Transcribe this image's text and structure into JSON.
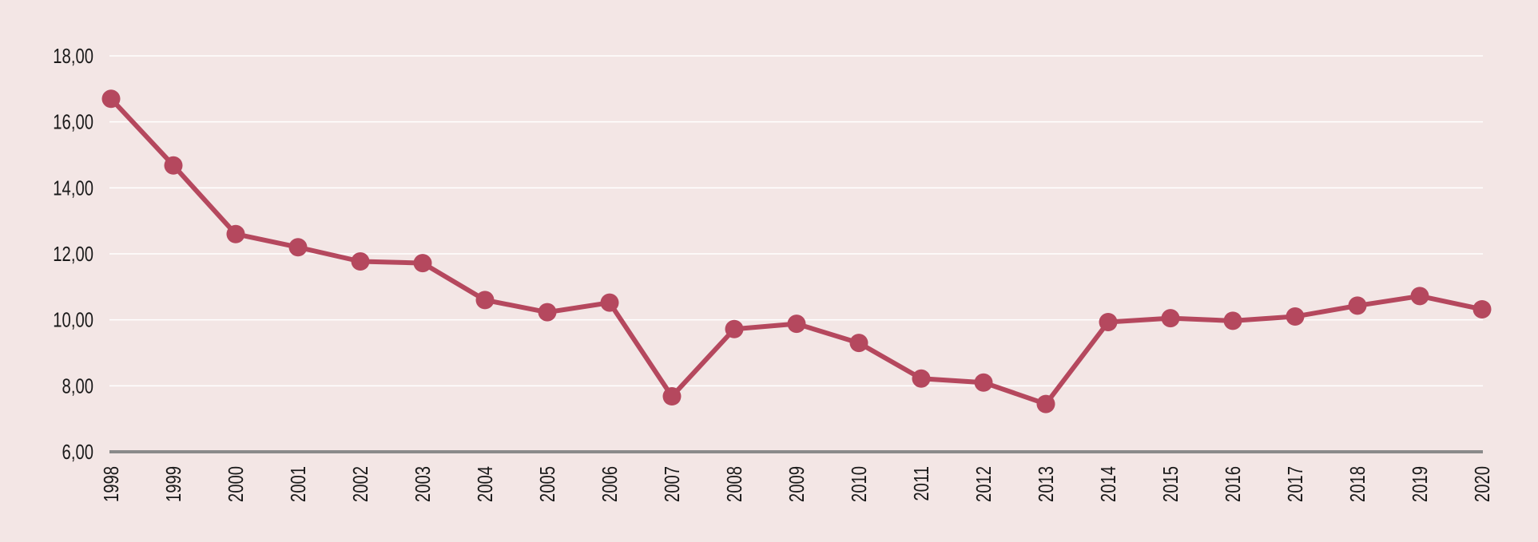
{
  "chart_data": {
    "type": "line",
    "title": "",
    "xlabel": "",
    "ylabel": "",
    "ylim": [
      6,
      18
    ],
    "y_ticks": [
      "6,00",
      "8,00",
      "10,00",
      "12,00",
      "14,00",
      "16,00",
      "18,00"
    ],
    "y_tick_values": [
      6,
      8,
      10,
      12,
      14,
      16,
      18
    ],
    "grid": true,
    "categories": [
      "1998",
      "1999",
      "2000",
      "2001",
      "2002",
      "2003",
      "2004",
      "2005",
      "2006",
      "2007",
      "2008",
      "2009",
      "2010",
      "2011",
      "2012",
      "2013",
      "2014",
      "2015",
      "2016",
      "2017",
      "2018",
      "2019",
      "2020"
    ],
    "series": [
      {
        "values": [
          16.7,
          14.68,
          12.6,
          12.2,
          11.77,
          11.72,
          10.6,
          10.23,
          10.52,
          7.68,
          9.72,
          9.88,
          9.3,
          8.22,
          8.1,
          7.45,
          9.93,
          10.05,
          9.97,
          10.1,
          10.43,
          10.72,
          10.32
        ]
      }
    ],
    "colors": {
      "background": "#f3e6e5",
      "line": "#b5485e",
      "grid": "#ffffff",
      "axis": "#8a8a8a",
      "text": "#1a1a1a"
    }
  }
}
